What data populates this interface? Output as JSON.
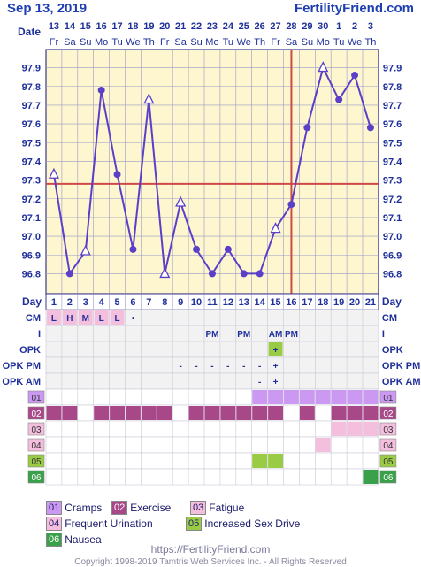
{
  "header": {
    "date": "Sep 13, 2019",
    "site": "FertilityFriend.com"
  },
  "chart_data": {
    "type": "line",
    "title": "",
    "row_label_date": "Date",
    "row_label_day": "Day",
    "dates": [
      "13",
      "14",
      "15",
      "16",
      "17",
      "18",
      "19",
      "20",
      "21",
      "22",
      "23",
      "24",
      "25",
      "26",
      "27",
      "28",
      "29",
      "30",
      "1",
      "2",
      "3"
    ],
    "weekdays": [
      "Fr",
      "Sa",
      "Su",
      "Mo",
      "Tu",
      "We",
      "Th",
      "Fr",
      "Sa",
      "Su",
      "Mo",
      "Tu",
      "We",
      "Th",
      "Fr",
      "Sa",
      "Su",
      "Mo",
      "Tu",
      "We",
      "Th"
    ],
    "days": [
      "1",
      "2",
      "3",
      "4",
      "5",
      "6",
      "7",
      "8",
      "9",
      "10",
      "11",
      "12",
      "13",
      "14",
      "15",
      "16",
      "17",
      "18",
      "19",
      "20",
      "21"
    ],
    "y_ticks": [
      "97.9",
      "97.8",
      "97.7",
      "97.6",
      "97.5",
      "97.4",
      "97.3",
      "97.2",
      "97.1",
      "97.0",
      "96.9",
      "96.8"
    ],
    "ylim": [
      96.75,
      97.95
    ],
    "temps": [
      97.33,
      96.8,
      96.92,
      97.78,
      97.33,
      96.93,
      97.73,
      96.8,
      97.18,
      96.93,
      96.8,
      96.93,
      96.8,
      96.8,
      97.04,
      97.17,
      97.58,
      97.9,
      97.73,
      97.86,
      97.58
    ],
    "markers": [
      "open-triangle",
      "dot",
      "open-triangle",
      "dot",
      "dot",
      "dot",
      "open-triangle",
      "open-triangle",
      "open-triangle",
      "dot",
      "dot",
      "dot",
      "dot",
      "dot",
      "open-triangle",
      "dot",
      "dot",
      "open-triangle",
      "dot",
      "dot",
      "dot"
    ],
    "coverline": 97.28,
    "ovulation_day": 16,
    "rows": [
      {
        "label": "CM",
        "values": [
          "L",
          "H",
          "M",
          "L",
          "L",
          "•",
          "",
          "",
          "",
          "",
          "",
          "",
          "",
          "",
          "",
          "",
          "",
          "",
          "",
          "",
          ""
        ]
      },
      {
        "label": "I",
        "values": [
          "",
          "",
          "",
          "",
          "",
          "",
          "",
          "",
          "",
          "",
          "PM",
          "",
          "PM",
          "",
          "AM",
          "PM",
          "",
          "",
          "",
          "",
          ""
        ]
      },
      {
        "label": "OPK",
        "values": [
          "",
          "",
          "",
          "",
          "",
          "",
          "",
          "",
          "",
          "",
          "",
          "",
          "",
          "",
          "+",
          "",
          "",
          "",
          "",
          "",
          ""
        ]
      },
      {
        "label": "OPK PM",
        "values": [
          "",
          "",
          "",
          "",
          "",
          "",
          "",
          "",
          "-",
          "-",
          "-",
          "-",
          "-",
          "-",
          "+",
          "",
          "",
          "",
          "",
          "",
          ""
        ]
      },
      {
        "label": "OPK AM",
        "values": [
          "",
          "",
          "",
          "",
          "",
          "",
          "",
          "",
          "",
          "",
          "",
          "",
          "",
          "-",
          "+",
          "",
          "",
          "",
          "",
          "",
          ""
        ]
      }
    ],
    "symptoms": [
      {
        "code": "01",
        "color": "#cc99f2",
        "days": [
          14,
          15,
          16,
          17,
          18,
          19,
          20,
          21
        ]
      },
      {
        "code": "02",
        "color": "#a84888",
        "days": [
          1,
          2,
          4,
          5,
          6,
          7,
          8,
          10,
          11,
          12,
          13,
          14,
          15,
          17,
          19,
          20,
          21
        ]
      },
      {
        "code": "03",
        "color": "#f4bedd",
        "days": [
          19,
          20,
          21
        ]
      },
      {
        "code": "04",
        "color": "#f4bedd",
        "days": [
          18
        ]
      },
      {
        "code": "05",
        "color": "#99cc44",
        "days": [
          14,
          15
        ]
      },
      {
        "code": "06",
        "color": "#3aa04a",
        "days": [
          21
        ]
      }
    ],
    "legend": [
      {
        "code": "01",
        "label": "Cramps",
        "color": "#cc99f2"
      },
      {
        "code": "02",
        "label": "Exercise",
        "color": "#a84888"
      },
      {
        "code": "03",
        "label": "Fatigue",
        "color": "#f4bedd"
      },
      {
        "code": "04",
        "label": "Frequent Urination",
        "color": "#f4bedd"
      },
      {
        "code": "05",
        "label": "Increased Sex Drive",
        "color": "#99cc44"
      },
      {
        "code": "06",
        "label": "Nausea",
        "color": "#3aa04a"
      }
    ]
  },
  "footer": {
    "url": "https://FertilityFriend.com",
    "copyright": "Copyright 1998-2019 Tamtris Web Services Inc. - All Rights Reserved"
  }
}
